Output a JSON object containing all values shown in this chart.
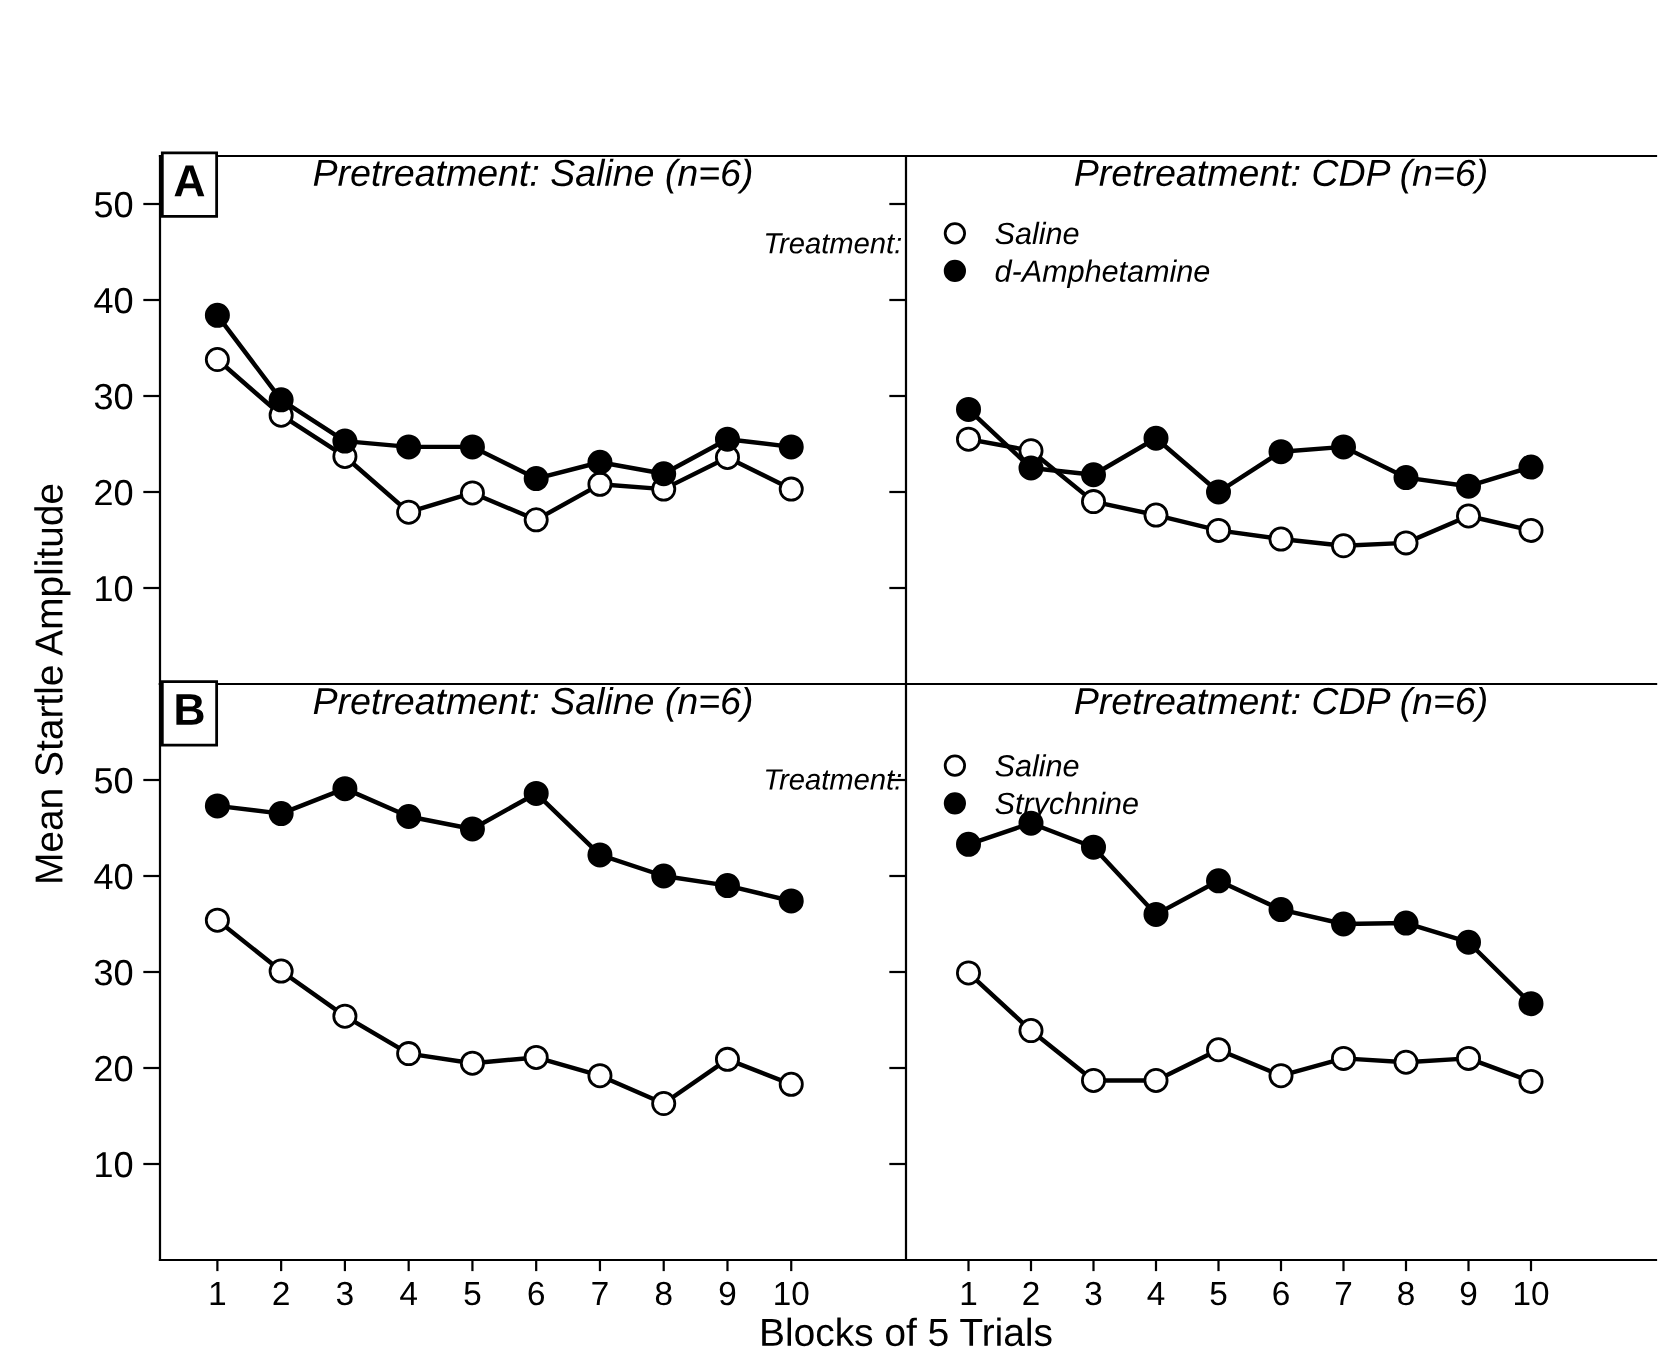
{
  "chart_data": [
    {
      "type": "line",
      "title": "Pretreatment: Saline (n=6)",
      "annotations": [
        "A"
      ],
      "marker": "circle",
      "line_style": "solid",
      "grid": false,
      "legend": false,
      "tick_labels": "y",
      "xlim": [
        0.1,
        11.8
      ],
      "ylim": [
        0,
        55
      ],
      "yticks": [
        10,
        20,
        30,
        40,
        50
      ],
      "series": [
        {
          "color": "#ffffff",
          "x": [
            1,
            2,
            3,
            4,
            5,
            6,
            7,
            8,
            9,
            10
          ],
          "values": [
            33.8,
            28.0,
            23.7,
            17.9,
            19.9,
            17.1,
            20.8,
            20.3,
            23.6,
            20.3
          ]
        },
        {
          "color": "#000000",
          "x": [
            1,
            2,
            3,
            4,
            5,
            6,
            7,
            8,
            9,
            10
          ],
          "values": [
            38.4,
            29.6,
            25.3,
            24.7,
            24.7,
            21.4,
            23.1,
            21.9,
            25.5,
            24.7
          ]
        }
      ]
    },
    {
      "type": "line",
      "title": "Pretreatment: CDP (n=6)",
      "legend_title": "Treatment:",
      "marker": "circle",
      "line_style": "solid",
      "grid": false,
      "legend": "top left",
      "tick_labels": false,
      "xlim": [
        0,
        12
      ],
      "ylim": [
        0,
        55
      ],
      "yticks": [
        10,
        20,
        30,
        40,
        50
      ],
      "series": [
        {
          "name": "Saline",
          "color": "#ffffff",
          "x": [
            1,
            2,
            3,
            4,
            5,
            6,
            7,
            8,
            9,
            10
          ],
          "values": [
            25.5,
            24.3,
            19.0,
            17.6,
            16.0,
            15.1,
            14.4,
            14.7,
            17.5,
            16.0
          ]
        },
        {
          "name": "d-Amphetamine",
          "color": "#000000",
          "x": [
            1,
            2,
            3,
            4,
            5,
            6,
            7,
            8,
            9,
            10
          ],
          "values": [
            28.6,
            22.5,
            21.8,
            25.6,
            20.0,
            24.2,
            24.7,
            21.5,
            20.6,
            22.6
          ]
        }
      ]
    },
    {
      "type": "line",
      "title": "Pretreatment: Saline (n=6)",
      "annotations": [
        "B"
      ],
      "xlabel": "Blocks of 5 Trials",
      "ylabel": "Mean Startle Amplitude",
      "marker": "circle",
      "line_style": "solid",
      "grid": false,
      "legend": false,
      "xlim": [
        0.1,
        11.8
      ],
      "ylim": [
        0,
        60
      ],
      "xticks": [
        1,
        2,
        3,
        4,
        5,
        6,
        7,
        8,
        9,
        10
      ],
      "yticks": [
        10,
        20,
        30,
        40,
        50
      ],
      "series": [
        {
          "color": "#ffffff",
          "x": [
            1,
            2,
            3,
            4,
            5,
            6,
            7,
            8,
            9,
            10
          ],
          "values": [
            35.4,
            30.1,
            25.4,
            21.5,
            20.5,
            21.1,
            19.2,
            16.3,
            20.9,
            18.3
          ]
        },
        {
          "color": "#000000",
          "x": [
            1,
            2,
            3,
            4,
            5,
            6,
            7,
            8,
            9,
            10
          ],
          "values": [
            47.3,
            46.5,
            49.1,
            46.2,
            44.9,
            48.6,
            42.2,
            40.0,
            39.0,
            37.4
          ]
        }
      ]
    },
    {
      "type": "line",
      "title": "Pretreatment: CDP (n=6)",
      "legend_title": "Treatment:",
      "marker": "circle",
      "line_style": "solid",
      "grid": false,
      "legend": "top left",
      "tick_labels": "x",
      "xlim": [
        0,
        12
      ],
      "ylim": [
        0,
        60
      ],
      "xticks": [
        1,
        2,
        3,
        4,
        5,
        6,
        7,
        8,
        9,
        10
      ],
      "yticks": [
        10,
        20,
        30,
        40,
        50
      ],
      "series": [
        {
          "name": "Saline",
          "color": "#ffffff",
          "x": [
            1,
            2,
            3,
            4,
            5,
            6,
            7,
            8,
            9,
            10
          ],
          "values": [
            29.9,
            23.9,
            18.7,
            18.7,
            21.9,
            19.2,
            21.0,
            20.6,
            21.0,
            18.6
          ]
        },
        {
          "name": "Strychnine",
          "color": "#000000",
          "x": [
            1,
            2,
            3,
            4,
            5,
            6,
            7,
            8,
            9,
            10
          ],
          "values": [
            43.3,
            45.5,
            43.0,
            36.0,
            39.5,
            36.5,
            35.0,
            35.1,
            33.1,
            26.7
          ]
        }
      ]
    }
  ]
}
